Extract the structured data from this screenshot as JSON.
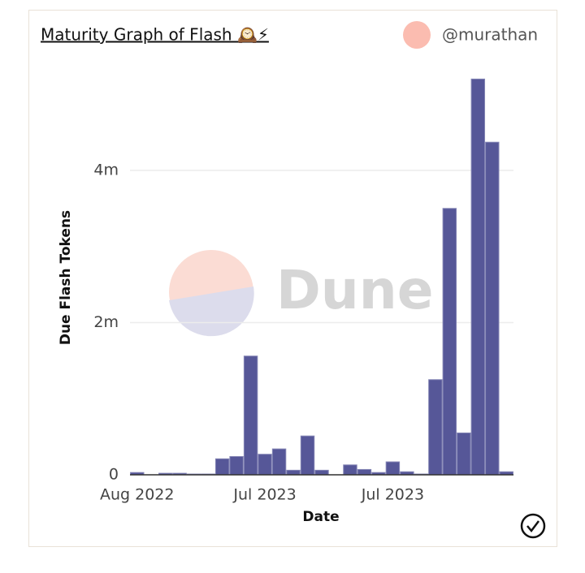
{
  "chart_data": {
    "type": "bar",
    "title": "Maturity Graph of Flash 🕰️⚡",
    "author": "@murathan",
    "watermark": "Dune",
    "x_label": "Date",
    "y_label": "Due Flash Tokens",
    "categories": [
      "Aug 2022",
      null,
      null,
      null,
      null,
      null,
      null,
      null,
      null,
      "Jul 2023",
      null,
      null,
      null,
      null,
      null,
      null,
      null,
      null,
      "Jul 2023",
      null,
      null,
      null,
      null,
      null,
      null,
      null,
      null
    ],
    "values": [
      30000,
      0,
      20000,
      20000,
      10000,
      10000,
      210000,
      240000,
      1560000,
      270000,
      340000,
      60000,
      510000,
      60000,
      0,
      130000,
      70000,
      30000,
      170000,
      40000,
      10000,
      1250000,
      3500000,
      550000,
      5200000,
      4370000,
      40000
    ],
    "color": "#565798",
    "ylim": [
      0,
      5300000
    ],
    "yticks": [
      0,
      {
        "value": 2000000,
        "label": "2m"
      },
      {
        "value": 4000000,
        "label": "4m"
      }
    ],
    "grid": true
  }
}
